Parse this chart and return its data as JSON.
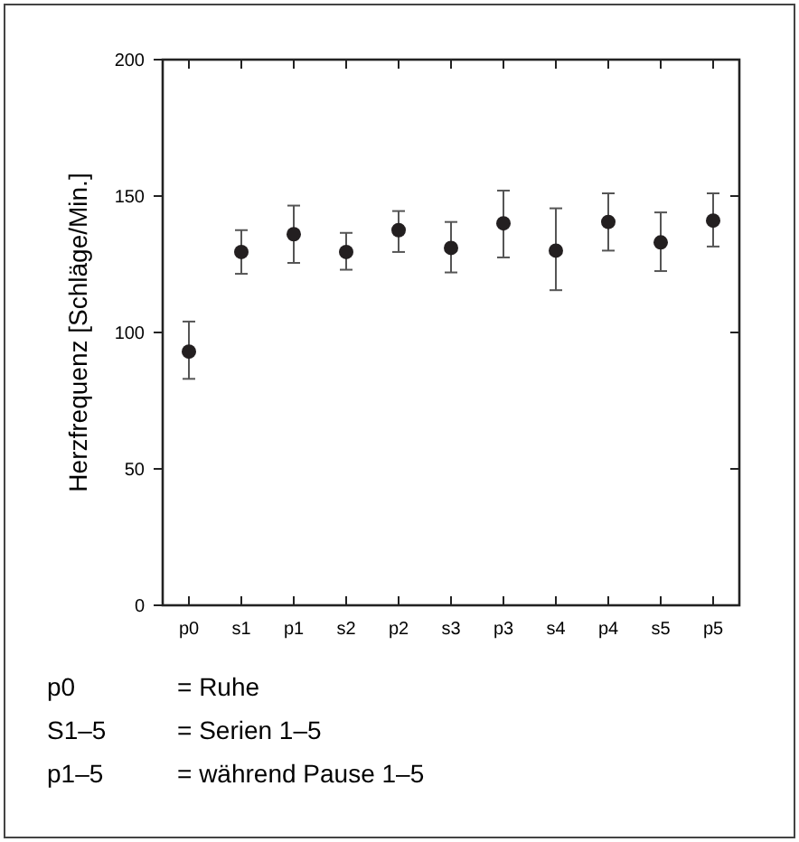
{
  "chart_data": {
    "type": "scatter",
    "ylabel": "Herzfrequenz [Schläge/Min.]",
    "categories": [
      "p0",
      "s1",
      "p1",
      "s2",
      "p2",
      "s3",
      "p3",
      "s4",
      "p4",
      "s5",
      "p5"
    ],
    "values": [
      93,
      129.5,
      136,
      129.5,
      137.5,
      131,
      140,
      130,
      140.5,
      133,
      141
    ],
    "errors": [
      [
        83,
        104
      ],
      [
        121.5,
        137.5
      ],
      [
        125.5,
        146.5
      ],
      [
        123,
        136.5
      ],
      [
        129.5,
        144.5
      ],
      [
        122,
        140.5
      ],
      [
        127.5,
        152
      ],
      [
        115.5,
        145.5
      ],
      [
        130,
        151
      ],
      [
        122.5,
        144
      ],
      [
        131.5,
        151
      ]
    ],
    "color": "#231f20",
    "marker": "circle",
    "ylim": [
      0,
      200
    ],
    "yticks": [
      0,
      50,
      100,
      150,
      200
    ],
    "grid": false,
    "annotations": [
      "p0\t= Ruhe",
      "S1–5\t= Serien 1–5",
      "p1–5\t= während Pause 1–5"
    ]
  }
}
